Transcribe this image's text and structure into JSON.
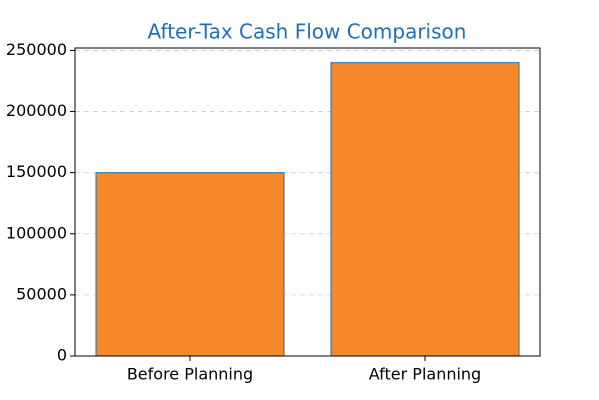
{
  "chart_data": {
    "type": "bar",
    "title": "After-Tax Cash Flow Comparison",
    "title_color": "#1f6fb4",
    "categories": [
      "Before Planning",
      "After Planning"
    ],
    "values": [
      150000,
      240000
    ],
    "color": "#f5892a",
    "edgecolor": "#2a6a9a",
    "ylim": [
      0,
      252000
    ],
    "yticks": [
      0,
      50000,
      100000,
      150000,
      200000,
      250000
    ],
    "grid": true
  }
}
